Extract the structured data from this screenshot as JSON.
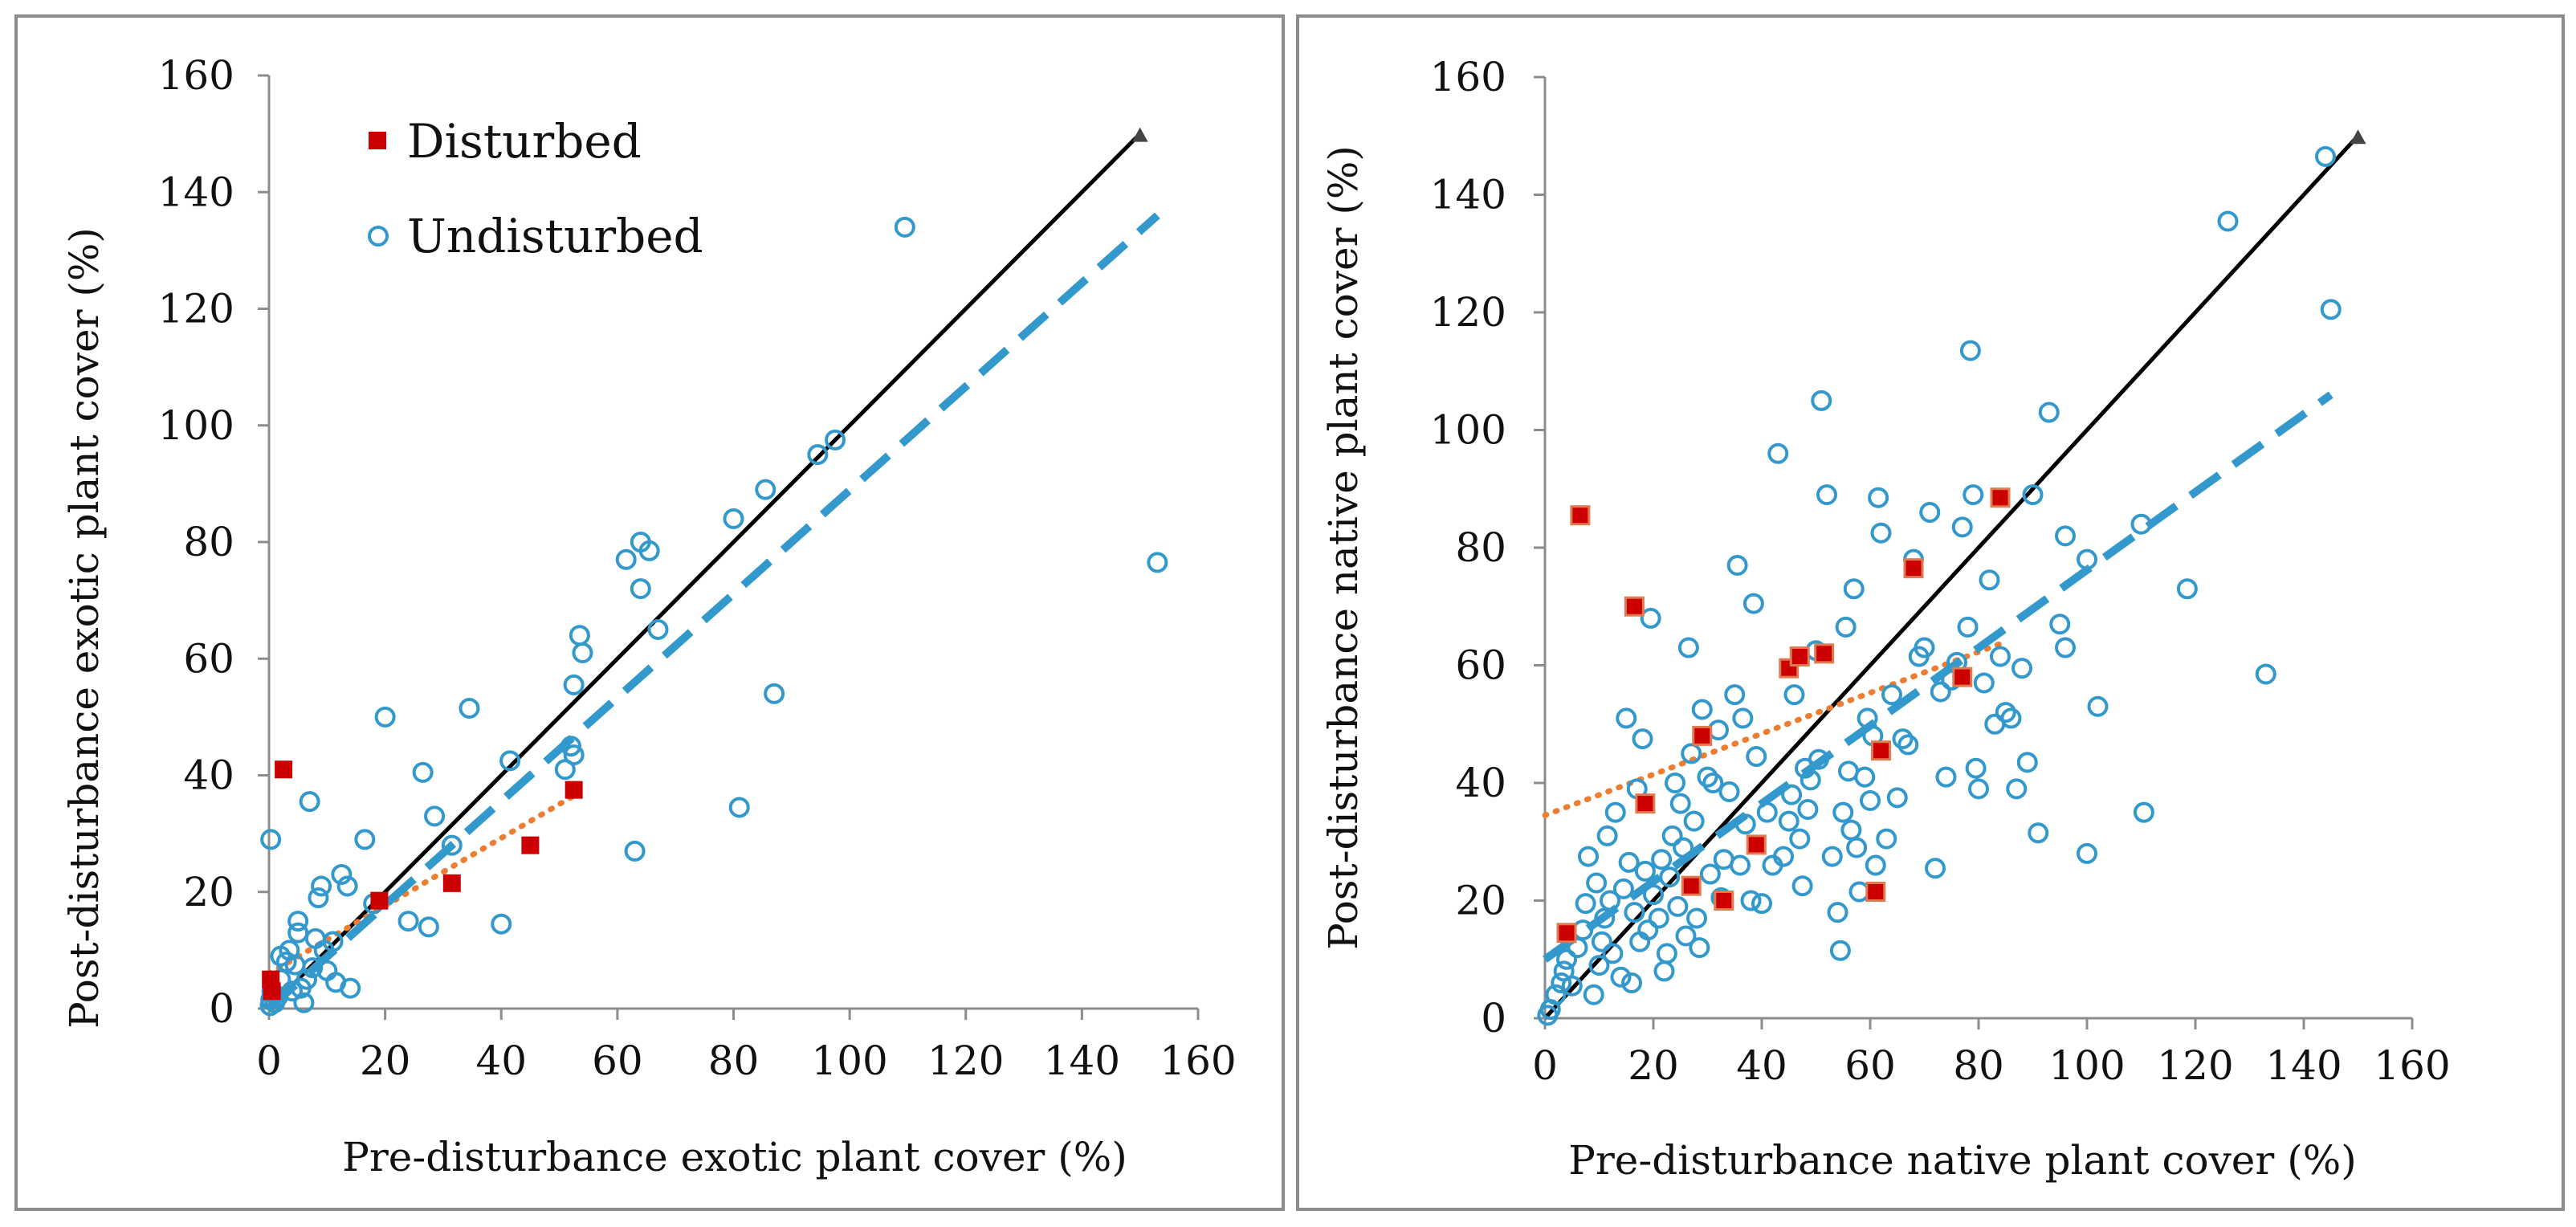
{
  "colors": {
    "disturbed": "#cc0000",
    "disturbed_edge": "#e07a50",
    "undisturbed": "#3399cc",
    "one_to_one": "#000000",
    "disturbed_trend": "#ed7d31",
    "undisturbed_trend": "#3399cc",
    "axis": "#8c8c8c",
    "frame": "#8c8c8c"
  },
  "chart_data": [
    {
      "type": "scatter",
      "title": "",
      "xlabel": "Pre-disturbance exotic plant cover (%)",
      "ylabel": "Post-disturbance exotic plant cover (%)",
      "xlim": [
        0,
        160
      ],
      "ylim": [
        0,
        160
      ],
      "xticks": [
        "0",
        "20",
        "40",
        "60",
        "80",
        "100",
        "120",
        "140",
        "160"
      ],
      "yticks": [
        "0",
        "20",
        "40",
        "60",
        "80",
        "100",
        "120",
        "140",
        "160"
      ],
      "grid": false,
      "legend_position": "top-left",
      "legend": [
        {
          "label": "Disturbed",
          "marker": "filled-square"
        },
        {
          "label": "Undisturbed",
          "marker": "open-circle"
        }
      ],
      "series": [
        {
          "name": "Disturbed",
          "marker": "filled-square",
          "points": [
            [
              0.3,
              5
            ],
            [
              0.5,
              3
            ],
            [
              2.5,
              41
            ],
            [
              19,
              18.5
            ],
            [
              31.5,
              21.5
            ],
            [
              45,
              28
            ],
            [
              52.5,
              37.5
            ]
          ]
        },
        {
          "name": "Undisturbed",
          "marker": "open-circle",
          "points": [
            [
              0.2,
              0.5
            ],
            [
              0.3,
              1.5
            ],
            [
              0.5,
              3
            ],
            [
              0.3,
              29
            ],
            [
              1,
              1
            ],
            [
              1.5,
              2
            ],
            [
              2,
              5
            ],
            [
              3,
              8
            ],
            [
              3.5,
              10
            ],
            [
              2,
              9
            ],
            [
              4,
              3
            ],
            [
              4.5,
              7.5
            ],
            [
              5,
              15
            ],
            [
              5,
              13
            ],
            [
              5.5,
              3.5
            ],
            [
              6,
              1
            ],
            [
              6.5,
              5
            ],
            [
              7,
              35.5
            ],
            [
              7.5,
              7
            ],
            [
              8,
              12
            ],
            [
              8.5,
              19
            ],
            [
              9,
              21
            ],
            [
              9.5,
              10
            ],
            [
              10,
              6.5
            ],
            [
              11,
              11.5
            ],
            [
              11.5,
              4.5
            ],
            [
              12.5,
              23
            ],
            [
              13.5,
              21
            ],
            [
              14,
              3.5
            ],
            [
              16.5,
              29
            ],
            [
              18,
              18
            ],
            [
              20,
              50
            ],
            [
              24,
              15
            ],
            [
              26.5,
              40.5
            ],
            [
              27.5,
              14
            ],
            [
              28.5,
              33
            ],
            [
              31.5,
              28
            ],
            [
              34.5,
              51.5
            ],
            [
              40,
              14.5
            ],
            [
              41.5,
              42.5
            ],
            [
              51,
              41
            ],
            [
              52,
              45
            ],
            [
              52.5,
              55.5
            ],
            [
              52.5,
              43.5
            ],
            [
              53.5,
              64
            ],
            [
              54,
              61
            ],
            [
              61.5,
              77
            ],
            [
              63,
              27
            ],
            [
              64,
              72
            ],
            [
              64,
              80
            ],
            [
              65.5,
              78.5
            ],
            [
              67,
              65
            ],
            [
              80,
              84
            ],
            [
              81,
              34.5
            ],
            [
              85.5,
              89
            ],
            [
              87,
              54
            ],
            [
              94.5,
              95
            ],
            [
              97.5,
              97.5
            ],
            [
              109.5,
              134
            ],
            [
              153,
              76.5
            ]
          ]
        }
      ],
      "lines": [
        {
          "name": "1:1",
          "style": "solid",
          "x": [
            0,
            150
          ],
          "y": [
            0,
            150
          ]
        },
        {
          "name": "Disturbed trend",
          "style": "dotted",
          "x": [
            0,
            52.5
          ],
          "y": [
            6,
            36.5
          ]
        },
        {
          "name": "Undisturbed trend",
          "style": "dashed",
          "x": [
            0,
            153
          ],
          "y": [
            0,
            136
          ]
        }
      ]
    },
    {
      "type": "scatter",
      "title": "",
      "xlabel": "Pre-disturbance native plant cover (%)",
      "ylabel": "Post-disturbance native plant cover (%)",
      "xlim": [
        0,
        160
      ],
      "ylim": [
        0,
        160
      ],
      "xticks": [
        "0",
        "20",
        "40",
        "60",
        "80",
        "100",
        "120",
        "140",
        "160"
      ],
      "yticks": [
        "0",
        "20",
        "40",
        "60",
        "80",
        "100",
        "120",
        "140",
        "160"
      ],
      "grid": false,
      "series": [
        {
          "name": "Disturbed",
          "marker": "filled-square",
          "points": [
            [
              4,
              14.5
            ],
            [
              6.5,
              85.5
            ],
            [
              16.5,
              70
            ],
            [
              18.5,
              36.5
            ],
            [
              27,
              22.5
            ],
            [
              29,
              48
            ],
            [
              39,
              29.5
            ],
            [
              33,
              20
            ],
            [
              45,
              59.5
            ],
            [
              47,
              61.5
            ],
            [
              51.5,
              62
            ],
            [
              61,
              21.5
            ],
            [
              62,
              45.5
            ],
            [
              68,
              76.5
            ],
            [
              77,
              58
            ],
            [
              84,
              88.5
            ]
          ]
        },
        {
          "name": "Undisturbed",
          "marker": "open-circle",
          "points": [
            [
              0.5,
              0.5
            ],
            [
              1,
              1.5
            ],
            [
              2,
              4
            ],
            [
              3,
              6
            ],
            [
              3.5,
              8
            ],
            [
              4,
              10
            ],
            [
              5,
              5.5
            ],
            [
              6,
              12
            ],
            [
              7,
              15
            ],
            [
              7.5,
              19.5
            ],
            [
              8,
              27.5
            ],
            [
              9,
              4
            ],
            [
              9.5,
              23
            ],
            [
              10,
              9
            ],
            [
              10.5,
              13
            ],
            [
              11,
              17
            ],
            [
              11.5,
              31
            ],
            [
              12,
              20
            ],
            [
              12.5,
              11
            ],
            [
              13,
              35
            ],
            [
              14,
              7
            ],
            [
              14.5,
              22
            ],
            [
              15,
              51
            ],
            [
              15.5,
              26.5
            ],
            [
              16,
              6
            ],
            [
              16.5,
              18
            ],
            [
              17,
              39
            ],
            [
              17.5,
              13
            ],
            [
              18,
              47.5
            ],
            [
              18.5,
              25
            ],
            [
              19,
              15
            ],
            [
              19.5,
              68
            ],
            [
              20,
              21
            ],
            [
              21,
              17
            ],
            [
              21.5,
              27
            ],
            [
              22,
              8
            ],
            [
              22.5,
              11
            ],
            [
              23,
              24
            ],
            [
              23.5,
              31
            ],
            [
              24,
              40
            ],
            [
              24.5,
              19
            ],
            [
              25,
              36.5
            ],
            [
              25.5,
              29
            ],
            [
              26,
              14
            ],
            [
              26.5,
              63
            ],
            [
              27,
              45
            ],
            [
              27.5,
              33.5
            ],
            [
              28,
              17
            ],
            [
              28.5,
              12
            ],
            [
              29,
              52.5
            ],
            [
              30,
              41
            ],
            [
              30.5,
              24.5
            ],
            [
              31,
              40
            ],
            [
              32,
              49
            ],
            [
              32.5,
              20.5
            ],
            [
              33,
              27
            ],
            [
              34,
              38.5
            ],
            [
              35,
              55
            ],
            [
              35.5,
              77
            ],
            [
              36,
              26
            ],
            [
              36.5,
              51
            ],
            [
              37,
              33
            ],
            [
              38,
              20
            ],
            [
              38.5,
              70.5
            ],
            [
              39,
              44.5
            ],
            [
              40,
              19.5
            ],
            [
              41,
              35
            ],
            [
              42,
              26
            ],
            [
              43,
              96
            ],
            [
              44,
              27.5
            ],
            [
              45,
              33.5
            ],
            [
              45.5,
              38
            ],
            [
              46,
              55
            ],
            [
              47,
              30.5
            ],
            [
              47.5,
              22.5
            ],
            [
              48,
              42.5
            ],
            [
              48.5,
              35.5
            ],
            [
              49,
              40.5
            ],
            [
              50,
              62.5
            ],
            [
              50.5,
              44
            ],
            [
              51,
              105
            ],
            [
              52,
              89
            ],
            [
              53,
              27.5
            ],
            [
              54,
              18
            ],
            [
              54.5,
              11.5
            ],
            [
              55,
              35
            ],
            [
              55.5,
              66.5
            ],
            [
              56,
              42
            ],
            [
              56.5,
              32
            ],
            [
              57,
              73
            ],
            [
              57.5,
              29
            ],
            [
              58,
              21.5
            ],
            [
              59,
              41
            ],
            [
              59.5,
              51
            ],
            [
              60,
              37
            ],
            [
              60.5,
              48
            ],
            [
              61,
              26
            ],
            [
              61.5,
              88.5
            ],
            [
              62,
              82.5
            ],
            [
              63,
              30.5
            ],
            [
              64,
              55
            ],
            [
              65,
              37.5
            ],
            [
              66,
              47.5
            ],
            [
              67,
              46.5
            ],
            [
              68,
              78
            ],
            [
              69,
              61.5
            ],
            [
              70,
              63
            ],
            [
              71,
              86
            ],
            [
              72,
              25.5
            ],
            [
              73,
              55.5
            ],
            [
              74,
              41
            ],
            [
              75,
              57.5
            ],
            [
              76,
              60.5
            ],
            [
              77,
              83.5
            ],
            [
              78,
              66.5
            ],
            [
              78.5,
              113.5
            ],
            [
              79,
              89
            ],
            [
              79.5,
              42.5
            ],
            [
              80,
              39
            ],
            [
              81,
              57
            ],
            [
              82,
              74.5
            ],
            [
              83,
              50
            ],
            [
              84,
              61.5
            ],
            [
              85,
              52
            ],
            [
              86,
              51
            ],
            [
              87,
              39
            ],
            [
              88,
              59.5
            ],
            [
              89,
              43.5
            ],
            [
              90,
              89
            ],
            [
              91,
              31.5
            ],
            [
              93,
              103
            ],
            [
              95,
              67
            ],
            [
              96,
              82
            ],
            [
              96,
              63
            ],
            [
              100,
              28
            ],
            [
              100,
              78
            ],
            [
              102,
              53
            ],
            [
              110,
              84
            ],
            [
              110.5,
              35
            ],
            [
              118.5,
              73
            ],
            [
              126,
              135.5
            ],
            [
              133,
              58.5
            ],
            [
              144,
              146.5
            ],
            [
              145,
              120.5
            ]
          ]
        }
      ],
      "lines": [
        {
          "name": "1:1",
          "style": "solid",
          "x": [
            0,
            150
          ],
          "y": [
            0,
            150
          ]
        },
        {
          "name": "Disturbed trend",
          "style": "dotted",
          "x": [
            0,
            85
          ],
          "y": [
            34.5,
            64
          ]
        },
        {
          "name": "Undisturbed trend",
          "style": "dashed",
          "x": [
            0,
            145
          ],
          "y": [
            10,
            106
          ]
        }
      ]
    }
  ]
}
